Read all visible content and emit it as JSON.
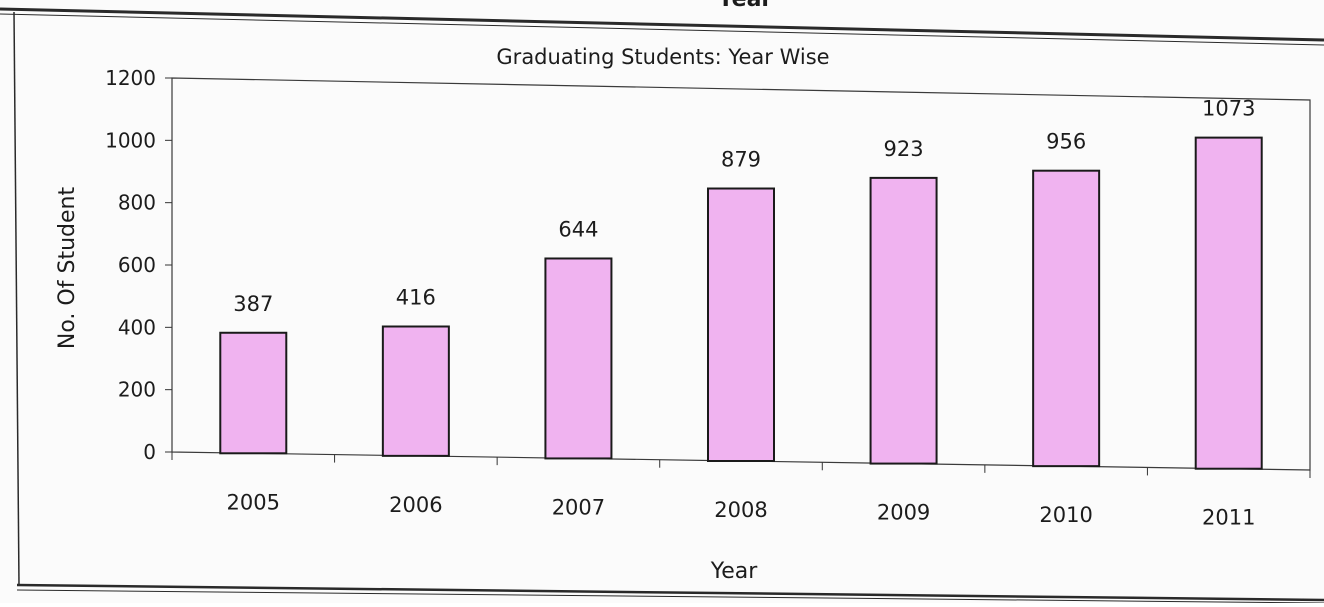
{
  "top_caption": "Year",
  "chart_data": {
    "type": "bar",
    "title": "Graduating Students: Year Wise",
    "xlabel": "Year",
    "ylabel": "No. Of Student",
    "categories": [
      "2005",
      "2006",
      "2007",
      "2008",
      "2009",
      "2010",
      "2011"
    ],
    "values": [
      387,
      416,
      644,
      879,
      923,
      956,
      1073
    ],
    "ylim": [
      0,
      1200
    ],
    "yticks": [
      0,
      200,
      400,
      600,
      800,
      1000,
      1200
    ],
    "grid": false,
    "legend": "none",
    "bar_color": "#f0b3f0",
    "bar_edge_color": "#1a1a1a"
  }
}
